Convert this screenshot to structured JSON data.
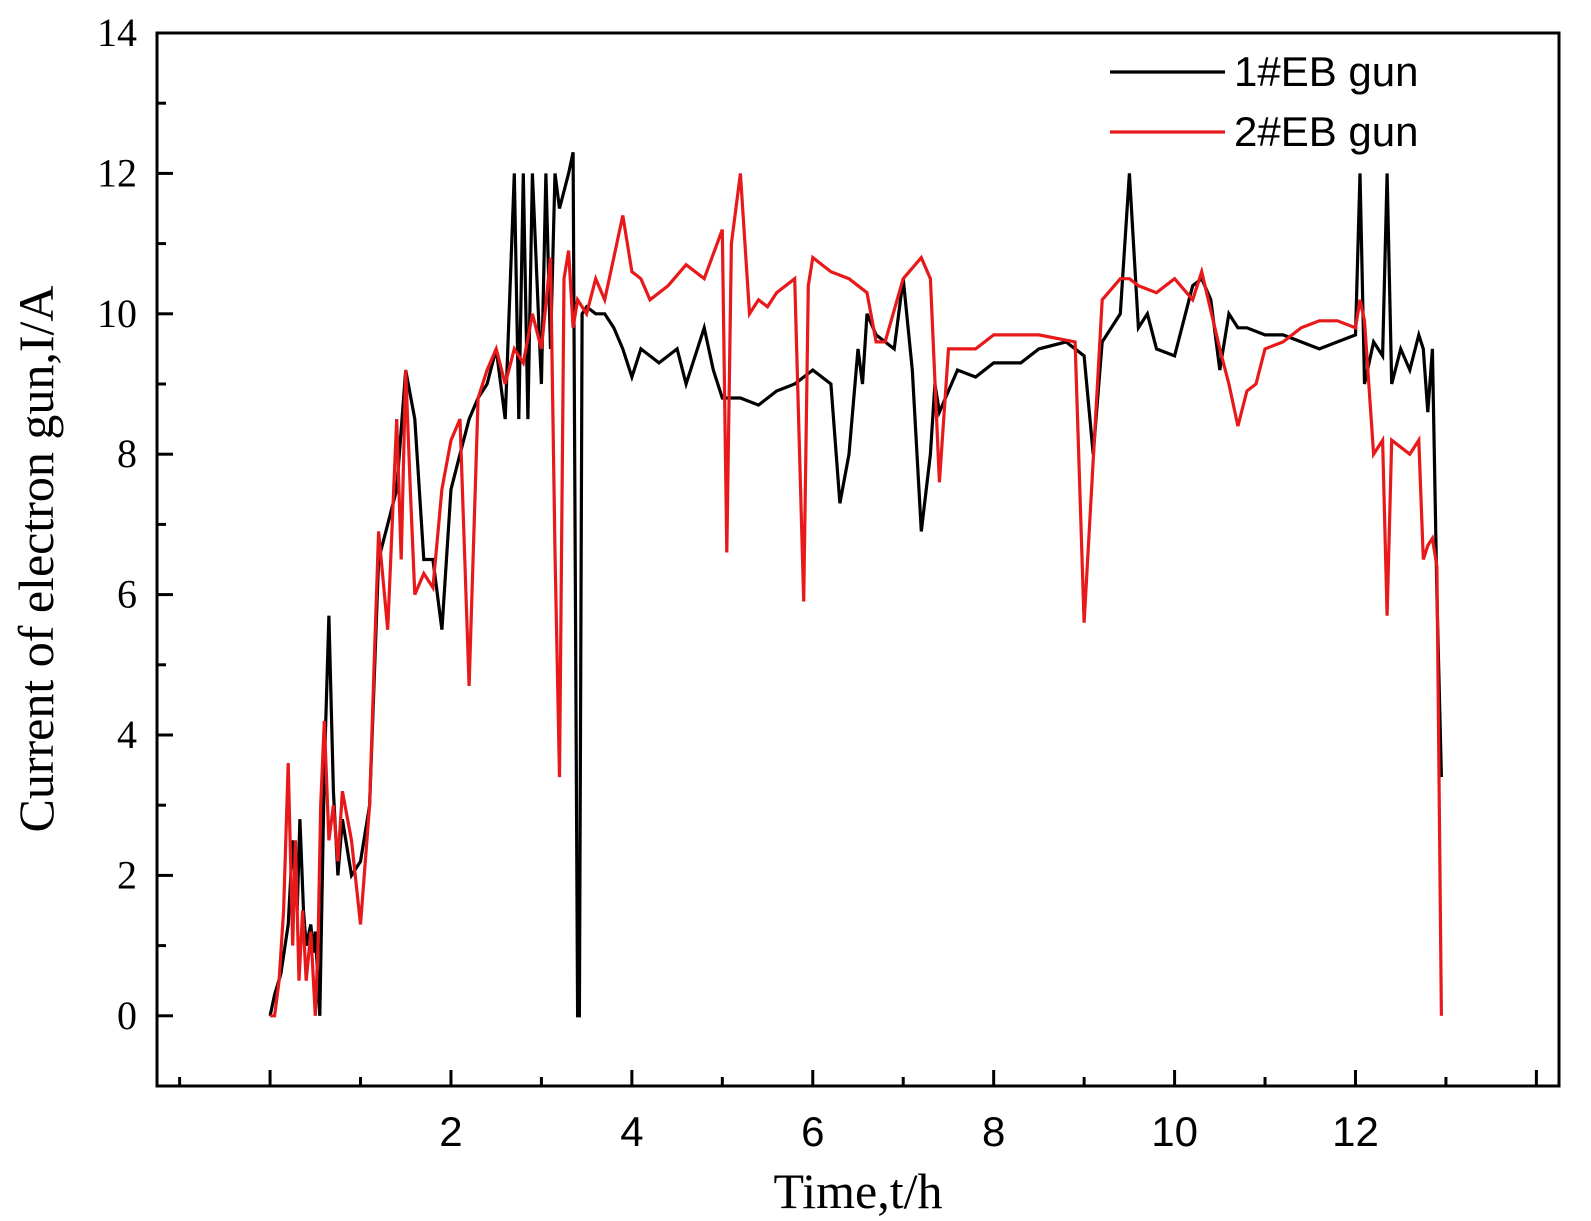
{
  "chart_data": {
    "type": "line",
    "xlabel": "Time,t/h",
    "ylabel": "Current of electron gun,I/A",
    "xlim": [
      -1.25,
      14.25
    ],
    "ylim": [
      -1,
      14
    ],
    "x_ticks": [
      2,
      4,
      6,
      8,
      10,
      12
    ],
    "y_ticks": [
      0,
      2,
      4,
      6,
      8,
      10,
      12,
      14
    ],
    "grid": false,
    "legend_position": "top-right",
    "series": [
      {
        "name": "1#EB gun",
        "color": "#000000",
        "x": [
          0.0,
          0.05,
          0.12,
          0.2,
          0.25,
          0.3,
          0.33,
          0.37,
          0.4,
          0.45,
          0.48,
          0.5,
          0.55,
          0.6,
          0.65,
          0.7,
          0.75,
          0.8,
          0.9,
          1.0,
          1.1,
          1.2,
          1.3,
          1.4,
          1.5,
          1.6,
          1.7,
          1.8,
          1.9,
          2.0,
          2.1,
          2.2,
          2.3,
          2.4,
          2.5,
          2.6,
          2.7,
          2.75,
          2.8,
          2.85,
          2.9,
          3.0,
          3.05,
          3.1,
          3.15,
          3.2,
          3.3,
          3.35,
          3.4,
          3.42,
          3.45,
          3.5,
          3.6,
          3.7,
          3.8,
          3.9,
          4.0,
          4.1,
          4.3,
          4.5,
          4.6,
          4.8,
          4.9,
          5.0,
          5.2,
          5.4,
          5.6,
          5.8,
          6.0,
          6.2,
          6.3,
          6.4,
          6.5,
          6.55,
          6.6,
          6.7,
          6.8,
          6.9,
          7.0,
          7.1,
          7.2,
          7.3,
          7.35,
          7.4,
          7.6,
          7.8,
          8.0,
          8.3,
          8.5,
          8.8,
          9.0,
          9.1,
          9.2,
          9.3,
          9.4,
          9.5,
          9.6,
          9.7,
          9.8,
          10.0,
          10.2,
          10.3,
          10.4,
          10.5,
          10.6,
          10.7,
          10.8,
          11.0,
          11.2,
          11.4,
          11.6,
          11.8,
          12.0,
          12.05,
          12.1,
          12.2,
          12.3,
          12.35,
          12.4,
          12.5,
          12.6,
          12.7,
          12.75,
          12.8,
          12.85,
          12.9,
          12.95
        ],
        "values": [
          0.0,
          0.3,
          0.6,
          1.3,
          2.5,
          1.5,
          2.8,
          1.5,
          1.0,
          1.3,
          0.9,
          1.2,
          0.0,
          3.5,
          5.7,
          3.2,
          2.0,
          2.8,
          2.0,
          2.2,
          3.0,
          6.5,
          7.0,
          7.5,
          9.2,
          8.5,
          6.5,
          6.5,
          5.5,
          7.5,
          8.0,
          8.5,
          8.8,
          9.0,
          9.5,
          8.5,
          12.0,
          8.5,
          12.0,
          8.5,
          12.0,
          9.0,
          12.0,
          9.5,
          12.0,
          11.5,
          12.0,
          12.3,
          0.0,
          0.0,
          10.0,
          10.1,
          10.0,
          10.0,
          9.8,
          9.5,
          9.1,
          9.5,
          9.3,
          9.5,
          9.0,
          9.8,
          9.2,
          8.8,
          8.8,
          8.7,
          8.9,
          9.0,
          9.2,
          9.0,
          7.3,
          8.0,
          9.5,
          9.0,
          10.0,
          9.7,
          9.6,
          9.5,
          10.5,
          9.2,
          6.9,
          8.0,
          9.0,
          8.6,
          9.2,
          9.1,
          9.3,
          9.3,
          9.5,
          9.6,
          9.4,
          8.0,
          9.6,
          9.8,
          10.0,
          12.0,
          9.8,
          10.0,
          9.5,
          9.4,
          10.4,
          10.5,
          10.2,
          9.2,
          10.0,
          9.8,
          9.8,
          9.7,
          9.7,
          9.6,
          9.5,
          9.6,
          9.7,
          12.0,
          9.0,
          9.6,
          9.4,
          12.0,
          9.0,
          9.5,
          9.2,
          9.7,
          9.5,
          8.6,
          9.5,
          6.0,
          3.4
        ]
      },
      {
        "name": "2#EB gun",
        "color": "#e8191a",
        "x": [
          0.0,
          0.05,
          0.1,
          0.15,
          0.2,
          0.25,
          0.28,
          0.32,
          0.36,
          0.4,
          0.45,
          0.5,
          0.53,
          0.56,
          0.6,
          0.65,
          0.7,
          0.75,
          0.8,
          0.9,
          1.0,
          1.1,
          1.15,
          1.2,
          1.3,
          1.4,
          1.45,
          1.5,
          1.55,
          1.6,
          1.7,
          1.8,
          1.9,
          2.0,
          2.1,
          2.2,
          2.3,
          2.4,
          2.5,
          2.6,
          2.7,
          2.8,
          2.9,
          3.0,
          3.1,
          3.15,
          3.2,
          3.25,
          3.3,
          3.35,
          3.4,
          3.5,
          3.6,
          3.7,
          3.8,
          3.9,
          4.0,
          4.1,
          4.2,
          4.4,
          4.6,
          4.8,
          5.0,
          5.05,
          5.1,
          5.2,
          5.3,
          5.4,
          5.5,
          5.6,
          5.8,
          5.9,
          5.95,
          6.0,
          6.2,
          6.4,
          6.6,
          6.7,
          6.8,
          7.0,
          7.2,
          7.3,
          7.4,
          7.5,
          7.8,
          8.0,
          8.5,
          8.9,
          9.0,
          9.2,
          9.4,
          9.5,
          9.6,
          9.8,
          10.0,
          10.2,
          10.3,
          10.5,
          10.6,
          10.7,
          10.8,
          10.9,
          11.0,
          11.2,
          11.4,
          11.6,
          11.8,
          12.0,
          12.05,
          12.1,
          12.2,
          12.3,
          12.35,
          12.4,
          12.6,
          12.7,
          12.75,
          12.8,
          12.85,
          12.9,
          12.95
        ],
        "values": [
          0.0,
          0.0,
          0.5,
          1.5,
          3.6,
          1.0,
          2.5,
          0.5,
          1.5,
          0.5,
          1.2,
          0.0,
          1.0,
          3.0,
          4.2,
          2.5,
          3.0,
          2.2,
          3.2,
          2.5,
          1.3,
          3.0,
          5.0,
          6.9,
          5.5,
          8.5,
          6.5,
          9.2,
          7.5,
          6.0,
          6.3,
          6.1,
          7.5,
          8.2,
          8.5,
          4.7,
          8.8,
          9.2,
          9.5,
          9.0,
          9.5,
          9.3,
          10.0,
          9.5,
          10.8,
          6.6,
          3.4,
          10.5,
          10.9,
          9.8,
          10.2,
          10.0,
          10.5,
          10.2,
          10.8,
          11.4,
          10.6,
          10.5,
          10.2,
          10.4,
          10.7,
          10.5,
          11.2,
          6.6,
          11.0,
          12.0,
          10.0,
          10.2,
          10.1,
          10.3,
          10.5,
          5.9,
          10.4,
          10.8,
          10.6,
          10.5,
          10.3,
          9.6,
          9.6,
          10.5,
          10.8,
          10.5,
          7.6,
          9.5,
          9.5,
          9.7,
          9.7,
          9.6,
          5.6,
          10.2,
          10.5,
          10.5,
          10.4,
          10.3,
          10.5,
          10.2,
          10.6,
          9.5,
          9.0,
          8.4,
          8.9,
          9.0,
          9.5,
          9.6,
          9.8,
          9.9,
          9.9,
          9.8,
          10.2,
          9.9,
          8.0,
          8.2,
          5.7,
          8.2,
          8.0,
          8.2,
          6.5,
          6.7,
          6.8,
          6.4,
          0.0
        ]
      }
    ]
  }
}
